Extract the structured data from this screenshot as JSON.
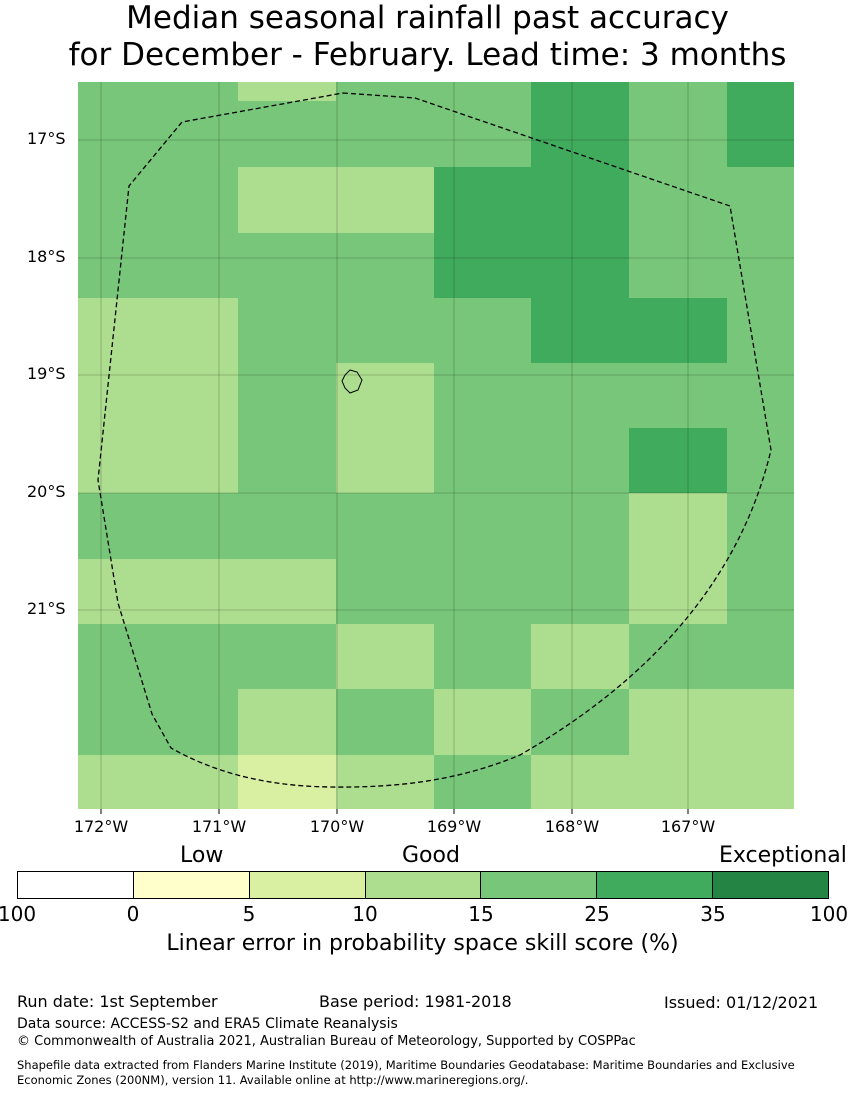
{
  "title": {
    "line1": "Median seasonal rainfall past accuracy",
    "line2": "for December - February. Lead time: 3 months"
  },
  "map": {
    "lat_labels": [
      "17°S",
      "18°S",
      "19°S",
      "20°S",
      "21°S"
    ],
    "lon_labels": [
      "172°W",
      "171°W",
      "170°W",
      "169°W",
      "168°W",
      "167°W"
    ],
    "skill_grid": [
      [
        "25",
        "15",
        "25",
        "25",
        "35",
        "25",
        "35"
      ],
      [
        "25",
        "25",
        "25",
        "25",
        "35",
        "25",
        "35"
      ],
      [
        "25",
        "15",
        "15",
        "35",
        "35",
        "25",
        "25"
      ],
      [
        "25",
        "25",
        "25",
        "35",
        "35",
        "25",
        "25"
      ],
      [
        "15",
        "25",
        "25",
        "25",
        "35",
        "35",
        "25"
      ],
      [
        "15",
        "25",
        "15",
        "25",
        "25",
        "25",
        "25"
      ],
      [
        "15",
        "25",
        "15",
        "25",
        "25",
        "35",
        "25"
      ],
      [
        "25",
        "25",
        "25",
        "25",
        "25",
        "15",
        "25"
      ],
      [
        "15",
        "15",
        "25",
        "25",
        "25",
        "15",
        "25"
      ],
      [
        "25",
        "25",
        "15",
        "25",
        "15",
        "25",
        "25"
      ],
      [
        "25",
        "15",
        "25",
        "15",
        "25",
        "15",
        "15"
      ],
      [
        "15",
        "10",
        "15",
        "25",
        "15",
        "15",
        "15"
      ]
    ],
    "colors": {
      "10": "#d9f0a3",
      "15": "#addd8e",
      "25": "#78c679",
      "35": "#41ab5d"
    }
  },
  "legend": {
    "categories": [
      "Low",
      "Good",
      "Exceptional"
    ],
    "colors": [
      "#ffffff",
      "#ffffcc",
      "#d9f0a3",
      "#addd8e",
      "#78c679",
      "#41ab5d",
      "#238443"
    ],
    "ticks": [
      "100",
      "0",
      "5",
      "10",
      "15",
      "25",
      "35",
      "100"
    ],
    "label": "Linear error in probability space skill score (%)"
  },
  "footer": {
    "run_date": "Run date: 1st September",
    "base_period": "Base period: 1981-2018",
    "issued": "Issued: 01/12/2021",
    "data_source": "Data source: ACCESS-S2 and ERA5 Climate Reanalysis",
    "copyright": "© Commonwealth of Australia 2021, Australian Bureau of Meteorology, Supported by COSPPac",
    "shapefile_line1": "Shapefile data extracted from Flanders Marine Institute (2019), Maritime Boundaries Geodatabase: Maritime Boundaries and Exclusive",
    "shapefile_line2": "Economic Zones (200NM), version 11. Available online at http://www.marineregions.org/."
  }
}
